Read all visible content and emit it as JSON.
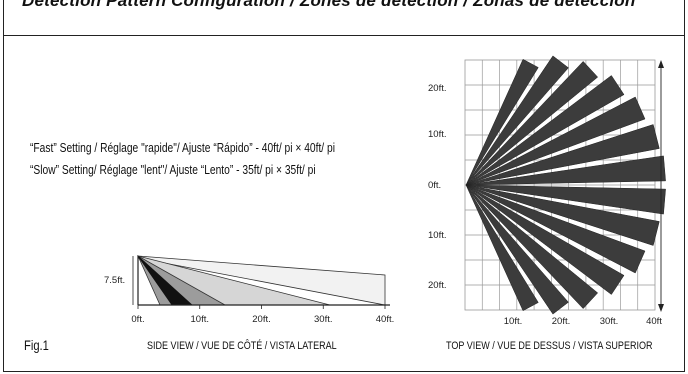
{
  "header": {
    "text": "Detection Pattern Configuration / Zones de détection / Zonas de detección"
  },
  "description": {
    "fast_setting": "“Fast” Setting / Réglage \"rapide\"/ Ajuste “Rápido” - 40ft/ pi × 40ft/ pi",
    "slow_setting": "“Slow” Setting/ Réglage \"lent\"/ Ajuste “Lento” - 35ft/ pi × 35ft/ pi"
  },
  "figure_label": "Fig.1",
  "side_view": {
    "caption": "SIDE VIEW / VUE DE CÔTÉ / VISTA LATERAL",
    "height_label": "7.5ft.",
    "x_ticks": [
      "0ft.",
      "10ft.",
      "20ft.",
      "30ft.",
      "40ft."
    ],
    "layers": [
      {
        "name": "outer",
        "reach_ft": 40,
        "color": "#f2f2f2"
      },
      {
        "name": "mid",
        "reach_ft": 30,
        "color": "#d6d6d6"
      },
      {
        "name": "inner",
        "reach_ft": 15,
        "color": "#9c9c9c"
      },
      {
        "name": "near",
        "reach_ft": 10,
        "color": "#111111"
      }
    ]
  },
  "top_view": {
    "caption": "TOP VIEW /  VUE DE DESSUS / VISTA SUPERIOR",
    "y_ticks": [
      "20ft.",
      "10ft.",
      "0ft.",
      "10ft.",
      "20ft."
    ],
    "x_ticks": [
      "10ft.",
      "20ft.",
      "30ft.",
      "40ft"
    ],
    "beam_color": "#3c3c3c",
    "grid_color": "#999999",
    "beam_count": 14
  }
}
